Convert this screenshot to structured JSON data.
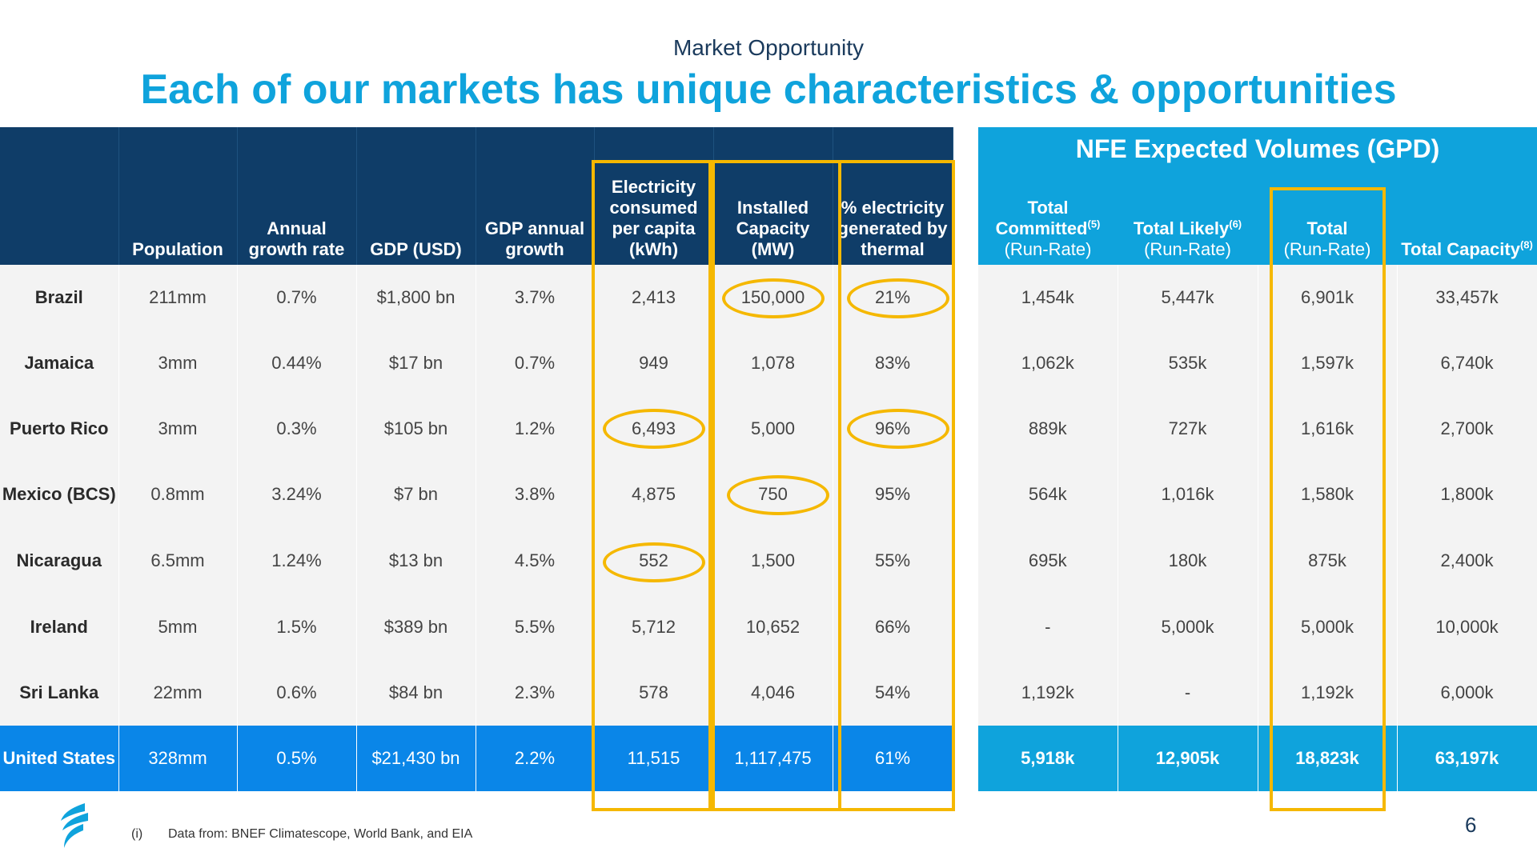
{
  "header": {
    "subtitle": "Market Opportunity",
    "title": "Each of our markets has unique characteristics & opportunities"
  },
  "left_columns": [
    "",
    "Population",
    "Annual growth rate",
    "GDP (USD)",
    "GDP annual growth",
    "Electricity consumed per capita (kWh)",
    "Installed Capacity (MW)",
    "% electricity generated by thermal"
  ],
  "right_band": "NFE Expected Volumes (GPD)",
  "right_columns": [
    {
      "label": "Total Committed",
      "sup": "(5)",
      "sub": "(Run-Rate)"
    },
    {
      "label": "Total Likely",
      "sup": "(6)",
      "sub": "(Run-Rate)"
    },
    {
      "label": "Total",
      "sup": "",
      "sub": "(Run-Rate)"
    },
    {
      "label": "Total Capacity",
      "sup": "(8)",
      "sub": ""
    }
  ],
  "rows": [
    {
      "country": "Brazil",
      "left": [
        "211mm",
        "0.7%",
        "$1,800 bn",
        "3.7%",
        "2,413",
        "150,000",
        "21%"
      ],
      "right": [
        "1,454k",
        "5,447k",
        "6,901k",
        "33,457k"
      ]
    },
    {
      "country": "Jamaica",
      "left": [
        "3mm",
        "0.44%",
        "$17 bn",
        "0.7%",
        "949",
        "1,078",
        "83%"
      ],
      "right": [
        "1,062k",
        "535k",
        "1,597k",
        "6,740k"
      ]
    },
    {
      "country": "Puerto Rico",
      "left": [
        "3mm",
        "0.3%",
        "$105 bn",
        "1.2%",
        "6,493",
        "5,000",
        "96%"
      ],
      "right": [
        "889k",
        "727k",
        "1,616k",
        "2,700k"
      ]
    },
    {
      "country": "Mexico (BCS)",
      "left": [
        "0.8mm",
        "3.24%",
        "$7 bn",
        "3.8%",
        "4,875",
        "750",
        "95%"
      ],
      "right": [
        "564k",
        "1,016k",
        "1,580k",
        "1,800k"
      ]
    },
    {
      "country": "Nicaragua",
      "left": [
        "6.5mm",
        "1.24%",
        "$13 bn",
        "4.5%",
        "552",
        "1,500",
        "55%"
      ],
      "right": [
        "695k",
        "180k",
        "875k",
        "2,400k"
      ]
    },
    {
      "country": "Ireland",
      "left": [
        "5mm",
        "1.5%",
        "$389 bn",
        "5.5%",
        "5,712",
        "10,652",
        "66%"
      ],
      "right": [
        "-",
        "5,000k",
        "5,000k",
        "10,000k"
      ]
    },
    {
      "country": "Sri Lanka",
      "left": [
        "22mm",
        "0.6%",
        "$84 bn",
        "2.3%",
        "578",
        "4,046",
        "54%"
      ],
      "right": [
        "1,192k",
        "-",
        "1,192k",
        "6,000k"
      ]
    },
    {
      "country": "United States",
      "left": [
        "328mm",
        "0.5%",
        "$21,430 bn",
        "2.2%",
        "11,515",
        "1,117,475",
        "61%"
      ],
      "right": [
        "5,918k",
        "12,905k",
        "18,823k",
        "63,197k"
      ]
    }
  ],
  "footnote": {
    "marker": "(i)",
    "text": "Data from: BNEF Climatescope, World Bank, and EIA"
  },
  "page_number": "6",
  "colors": {
    "navy": "#0f3d68",
    "accent": "#0fa3dc",
    "us_row": "#0a86e8",
    "highlight": "#f5b800"
  },
  "logo_icon": "flame-logo-icon"
}
